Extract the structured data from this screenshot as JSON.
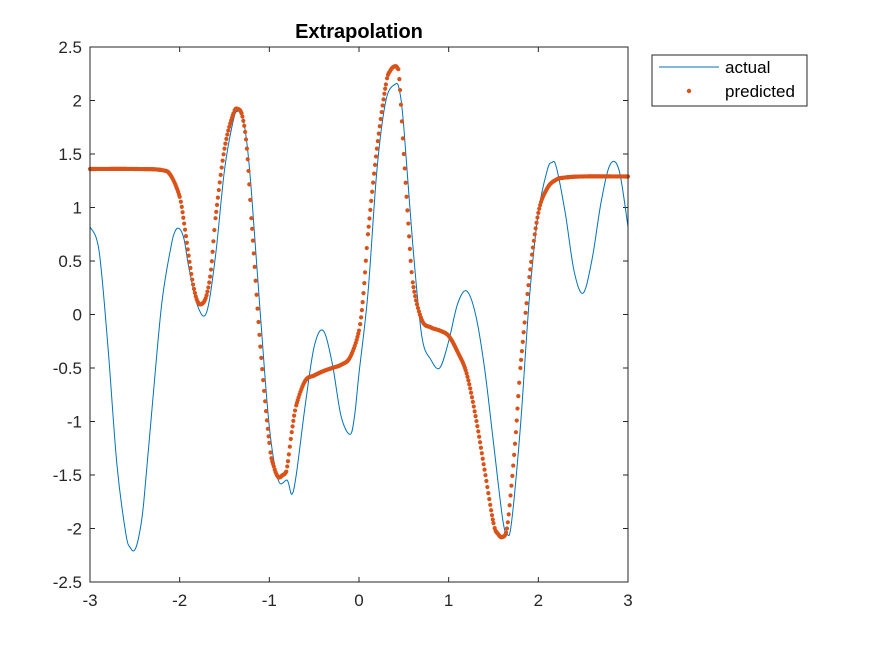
{
  "chart_data": {
    "type": "line",
    "title": "Extrapolation",
    "xlabel": "",
    "ylabel": "",
    "xlim": [
      -3,
      3
    ],
    "ylim": [
      -2.5,
      2.5
    ],
    "x_ticks": [
      -3,
      -2,
      -1,
      0,
      1,
      2,
      3
    ],
    "y_ticks": [
      -2.5,
      -2,
      -1.5,
      -1,
      -0.5,
      0,
      0.5,
      1,
      1.5,
      2,
      2.5
    ],
    "x_tick_labels": [
      "-3",
      "-2",
      "-1",
      "0",
      "1",
      "2",
      "3"
    ],
    "y_tick_labels": [
      "-2.5",
      "-2",
      "-1.5",
      "-1",
      "-0.5",
      "0",
      "0.5",
      "1",
      "1.5",
      "2",
      "2.5"
    ],
    "grid": false,
    "legend_position": "outside-top-right",
    "series": [
      {
        "name": "actual",
        "style": "line",
        "color": "#0072BD",
        "x": [
          -3.0,
          -2.9,
          -2.8,
          -2.7,
          -2.6,
          -2.55,
          -2.5,
          -2.45,
          -2.4,
          -2.3,
          -2.2,
          -2.1,
          -2.05,
          -2.0,
          -1.95,
          -1.9,
          -1.8,
          -1.7,
          -1.6,
          -1.5,
          -1.4,
          -1.35,
          -1.3,
          -1.25,
          -1.2,
          -1.1,
          -1.0,
          -0.9,
          -0.8,
          -0.75,
          -0.7,
          -0.6,
          -0.5,
          -0.4,
          -0.3,
          -0.2,
          -0.1,
          -0.05,
          0.0,
          0.1,
          0.2,
          0.3,
          0.4,
          0.45,
          0.5,
          0.6,
          0.7,
          0.8,
          0.9,
          1.0,
          1.1,
          1.2,
          1.3,
          1.4,
          1.5,
          1.6,
          1.65,
          1.7,
          1.8,
          1.9,
          2.0,
          2.1,
          2.15,
          2.2,
          2.3,
          2.4,
          2.5,
          2.6,
          2.7,
          2.8,
          2.9,
          3.0
        ],
        "y": [
          0.82,
          0.6,
          -0.3,
          -1.4,
          -2.05,
          -2.18,
          -2.2,
          -2.05,
          -1.75,
          -0.8,
          0.1,
          0.62,
          0.78,
          0.8,
          0.7,
          0.45,
          0.08,
          0.02,
          0.55,
          1.35,
          1.82,
          1.9,
          1.85,
          1.6,
          1.15,
          0.0,
          -1.05,
          -1.55,
          -1.55,
          -1.68,
          -1.5,
          -0.85,
          -0.3,
          -0.15,
          -0.45,
          -0.95,
          -1.12,
          -0.95,
          -0.55,
          0.2,
          1.35,
          2.0,
          2.15,
          2.1,
          1.75,
          0.65,
          -0.2,
          -0.42,
          -0.5,
          -0.25,
          0.1,
          0.22,
          0.0,
          -0.5,
          -1.2,
          -1.9,
          -2.05,
          -1.95,
          -1.05,
          0.15,
          0.95,
          1.35,
          1.42,
          1.38,
          0.95,
          0.4,
          0.2,
          0.52,
          1.05,
          1.4,
          1.35,
          0.82
        ]
      },
      {
        "name": "predicted",
        "style": "markers",
        "color": "#D95319",
        "x": [
          -3.0,
          -2.5,
          -2.2,
          -2.1,
          -2.0,
          -1.95,
          -1.9,
          -1.85,
          -1.8,
          -1.75,
          -1.7,
          -1.65,
          -1.6,
          -1.5,
          -1.4,
          -1.35,
          -1.3,
          -1.25,
          -1.2,
          -1.1,
          -1.0,
          -0.95,
          -0.9,
          -0.85,
          -0.82,
          -0.8,
          -0.75,
          -0.7,
          -0.6,
          -0.5,
          -0.4,
          -0.3,
          -0.2,
          -0.1,
          0.0,
          0.05,
          0.1,
          0.2,
          0.3,
          0.35,
          0.4,
          0.43,
          0.45,
          0.5,
          0.55,
          0.6,
          0.7,
          0.8,
          0.9,
          1.0,
          1.1,
          1.2,
          1.3,
          1.4,
          1.5,
          1.55,
          1.6,
          1.65,
          1.7,
          1.75,
          1.8,
          1.9,
          2.0,
          2.1,
          2.2,
          2.3,
          2.5,
          3.0
        ],
        "y": [
          1.36,
          1.36,
          1.35,
          1.3,
          1.1,
          0.85,
          0.55,
          0.28,
          0.12,
          0.1,
          0.18,
          0.42,
          0.9,
          1.55,
          1.88,
          1.92,
          1.85,
          1.55,
          0.9,
          -0.3,
          -1.2,
          -1.42,
          -1.52,
          -1.5,
          -1.48,
          -1.42,
          -1.1,
          -0.85,
          -0.62,
          -0.57,
          -0.53,
          -0.5,
          -0.47,
          -0.4,
          -0.15,
          0.2,
          0.75,
          1.55,
          2.15,
          2.28,
          2.32,
          2.3,
          2.2,
          1.5,
          0.85,
          0.3,
          -0.05,
          -0.12,
          -0.15,
          -0.2,
          -0.35,
          -0.55,
          -0.95,
          -1.45,
          -1.95,
          -2.05,
          -2.08,
          -2.0,
          -1.6,
          -1.1,
          -0.5,
          0.35,
          0.95,
          1.18,
          1.26,
          1.28,
          1.29,
          1.29
        ]
      }
    ]
  }
}
